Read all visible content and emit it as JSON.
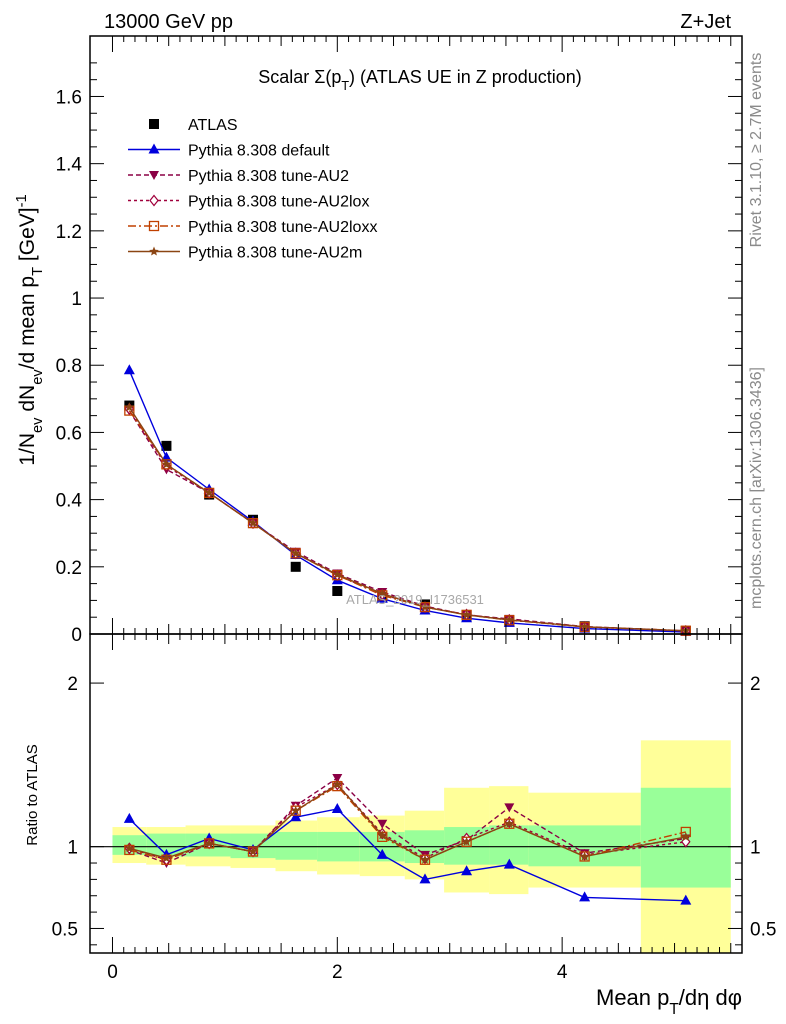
{
  "header": {
    "left": "13000 GeV pp",
    "right": "Z+Jet"
  },
  "side_labels": {
    "rivet": "Rivet 3.1.10, ≥ 2.7M events",
    "mcplots": "mcplots.cern.ch [arXiv:1306.3436]"
  },
  "watermark": "ATLAS_2019_I1736531",
  "chart_data": [
    {
      "type": "line",
      "panel": "main",
      "title": "Scalar Σ(p_T) (ATLAS UE in Z production)",
      "ylabel": "1/N_ev dN_ev/d mean p_T [GeV]^-1",
      "xlim": [
        -0.2,
        5.6
      ],
      "ylim": [
        0,
        1.78
      ],
      "yticks": [
        "0",
        "0.2",
        "0.4",
        "0.6",
        "0.8",
        "1",
        "1.2",
        "1.4",
        "1.6"
      ],
      "legend_position": "top-left",
      "x": [
        0.15,
        0.48,
        0.86,
        1.25,
        1.63,
        2.0,
        2.4,
        2.78,
        3.15,
        3.53,
        4.2,
        5.1
      ],
      "series": [
        {
          "name": "ATLAS",
          "color": "#000000",
          "marker": "square",
          "values": [
            0.68,
            0.56,
            0.415,
            0.34,
            0.2,
            0.128,
            0.11,
            0.088,
            0.055,
            0.037,
            0.023,
            0.009
          ]
        },
        {
          "name": "Pythia 8.308 default",
          "color": "#0000dd",
          "marker": "triangle",
          "values": [
            0.785,
            0.525,
            0.43,
            0.335,
            0.235,
            0.16,
            0.105,
            0.07,
            0.047,
            0.033,
            0.016,
            0.006
          ]
        },
        {
          "name": "Pythia 8.308 tune-AU2",
          "color": "#8b0045",
          "marker": "triangle-down",
          "dash": "5,3",
          "values": [
            0.665,
            0.49,
            0.42,
            0.33,
            0.245,
            0.18,
            0.125,
            0.083,
            0.057,
            0.045,
            0.022,
            0.0095
          ]
        },
        {
          "name": "Pythia 8.308 tune-AU2lox",
          "color": "#a0003c",
          "marker": "diamond",
          "dash": "3,3",
          "values": [
            0.67,
            0.5,
            0.42,
            0.33,
            0.24,
            0.175,
            0.118,
            0.08,
            0.058,
            0.042,
            0.0215,
            0.0093
          ]
        },
        {
          "name": "Pythia 8.308 tune-AU2loxx",
          "color": "#c04000",
          "marker": "square-open",
          "dash": "8,3,2,3",
          "values": [
            0.665,
            0.505,
            0.42,
            0.33,
            0.24,
            0.175,
            0.115,
            0.08,
            0.057,
            0.041,
            0.021,
            0.0098
          ]
        },
        {
          "name": "Pythia 8.308 tune-AU2m",
          "color": "#8b4513",
          "marker": "star",
          "values": [
            0.675,
            0.505,
            0.42,
            0.33,
            0.24,
            0.177,
            0.12,
            0.08,
            0.057,
            0.042,
            0.0215,
            0.0095
          ]
        }
      ]
    },
    {
      "type": "line",
      "panel": "ratio",
      "ylabel": "Ratio to ATLAS",
      "xlabel": "Mean p_T/dη dφ",
      "xlim": [
        -0.2,
        5.6
      ],
      "ylim": [
        0.35,
        2.3
      ],
      "yticks": [
        "0.5",
        "1",
        "2"
      ],
      "xticks": [
        "0",
        "2",
        "4"
      ],
      "reference": 1,
      "bands": [
        {
          "x0": 0.0,
          "x1": 0.3,
          "inner": [
            0.95,
            1.07
          ],
          "outer": [
            0.9,
            1.12
          ]
        },
        {
          "x0": 0.3,
          "x1": 0.65,
          "inner": [
            0.94,
            1.08
          ],
          "outer": [
            0.89,
            1.12
          ]
        },
        {
          "x0": 0.65,
          "x1": 1.05,
          "inner": [
            0.94,
            1.08
          ],
          "outer": [
            0.88,
            1.13
          ]
        },
        {
          "x0": 1.05,
          "x1": 1.45,
          "inner": [
            0.93,
            1.08
          ],
          "outer": [
            0.87,
            1.13
          ]
        },
        {
          "x0": 1.45,
          "x1": 1.82,
          "inner": [
            0.92,
            1.09
          ],
          "outer": [
            0.85,
            1.16
          ]
        },
        {
          "x0": 1.82,
          "x1": 2.2,
          "inner": [
            0.91,
            1.09
          ],
          "outer": [
            0.83,
            1.18
          ]
        },
        {
          "x0": 2.2,
          "x1": 2.6,
          "inner": [
            0.91,
            1.09
          ],
          "outer": [
            0.82,
            1.19
          ]
        },
        {
          "x0": 2.6,
          "x1": 2.95,
          "inner": [
            0.9,
            1.1
          ],
          "outer": [
            0.8,
            1.22
          ]
        },
        {
          "x0": 2.95,
          "x1": 3.35,
          "inner": [
            0.89,
            1.12
          ],
          "outer": [
            0.72,
            1.36
          ]
        },
        {
          "x0": 3.35,
          "x1": 3.7,
          "inner": [
            0.89,
            1.13
          ],
          "outer": [
            0.71,
            1.37
          ]
        },
        {
          "x0": 3.7,
          "x1": 4.7,
          "inner": [
            0.88,
            1.13
          ],
          "outer": [
            0.75,
            1.33
          ]
        },
        {
          "x0": 4.7,
          "x1": 5.5,
          "inner": [
            0.75,
            1.36
          ],
          "outer": [
            0.35,
            1.65
          ]
        }
      ],
      "x": [
        0.15,
        0.48,
        0.86,
        1.25,
        1.63,
        2.0,
        2.4,
        2.78,
        3.15,
        3.53,
        4.2,
        5.1
      ],
      "series": [
        {
          "name": "Pythia 8.308 default",
          "color": "#0000dd",
          "marker": "triangle",
          "values": [
            1.17,
            0.95,
            1.05,
            0.98,
            1.18,
            1.23,
            0.95,
            0.8,
            0.85,
            0.89,
            0.69,
            0.67
          ]
        },
        {
          "name": "Pythia 8.308 tune-AU2",
          "color": "#8b0045",
          "marker": "triangle-down",
          "dash": "5,3",
          "values": [
            0.98,
            0.9,
            1.02,
            0.97,
            1.25,
            1.42,
            1.14,
            0.95,
            1.04,
            1.24,
            0.96,
            1.05
          ]
        },
        {
          "name": "Pythia 8.308 tune-AU2lox",
          "color": "#a0003c",
          "marker": "diamond",
          "dash": "3,3",
          "values": [
            0.99,
            0.92,
            1.02,
            0.97,
            1.24,
            1.38,
            1.08,
            0.93,
            1.05,
            1.15,
            0.95,
            1.03
          ]
        },
        {
          "name": "Pythia 8.308 tune-AU2loxx",
          "color": "#c04000",
          "marker": "square-open",
          "dash": "8,3,2,3",
          "values": [
            0.98,
            0.92,
            1.02,
            0.97,
            1.22,
            1.37,
            1.06,
            0.92,
            1.03,
            1.14,
            0.94,
            1.09
          ]
        },
        {
          "name": "Pythia 8.308 tune-AU2m",
          "color": "#8b4513",
          "marker": "star",
          "values": [
            0.99,
            0.93,
            1.02,
            0.97,
            1.22,
            1.38,
            1.07,
            0.92,
            1.03,
            1.14,
            0.94,
            1.06
          ]
        }
      ]
    }
  ]
}
